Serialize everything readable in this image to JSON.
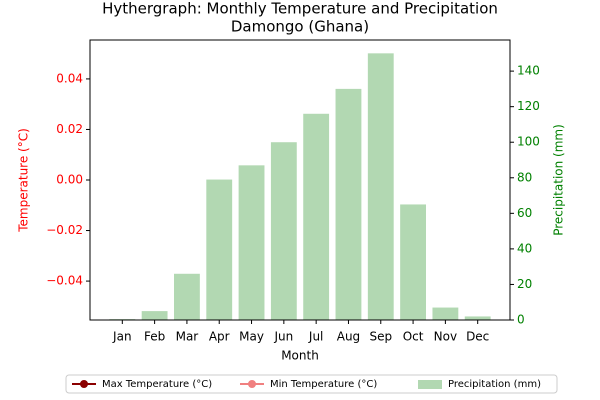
{
  "chart_data": {
    "type": "bar",
    "title": "Hythergraph: Monthly Temperature and Precipitation",
    "subtitle": "Damongo (Ghana)",
    "x_label": "Month",
    "y_label": "Temperature (°C)",
    "y2_label": "Precipitation (mm)",
    "categories": [
      "Jan",
      "Feb",
      "Mar",
      "Apr",
      "May",
      "Jun",
      "Jul",
      "Aug",
      "Sep",
      "Oct",
      "Nov",
      "Dec"
    ],
    "series": [
      {
        "name": "Max Temperature (°C)",
        "type": "line",
        "color": "#8b0000",
        "values": [
          null,
          null,
          null,
          null,
          null,
          null,
          null,
          null,
          null,
          null,
          null,
          null
        ]
      },
      {
        "name": "Min Temperature (°C)",
        "type": "line",
        "color": "#f08080",
        "values": [
          null,
          null,
          null,
          null,
          null,
          null,
          null,
          null,
          null,
          null,
          null,
          null
        ]
      },
      {
        "name": "Precipitation (mm)",
        "type": "bar",
        "axis": "y2",
        "color": "#b2d8b2",
        "values": [
          0.5,
          5,
          26,
          79,
          87,
          100,
          116,
          130,
          150,
          65,
          7,
          2
        ]
      }
    ],
    "ylim": [
      -0.0554,
      0.0554
    ],
    "yticks": [
      {
        "value": -0.04,
        "label": "−0.04"
      },
      {
        "value": -0.02,
        "label": "−0.02"
      },
      {
        "value": 0,
        "label": "0.00"
      },
      {
        "value": 0.02,
        "label": "0.02"
      },
      {
        "value": 0.04,
        "label": "0.04"
      }
    ],
    "y2lim": [
      0,
      157.5
    ],
    "y2ticks": [
      0,
      20,
      40,
      60,
      80,
      100,
      120,
      140
    ],
    "y_color": "#ff0000",
    "y2_color": "#008000",
    "legend": "bottom"
  }
}
